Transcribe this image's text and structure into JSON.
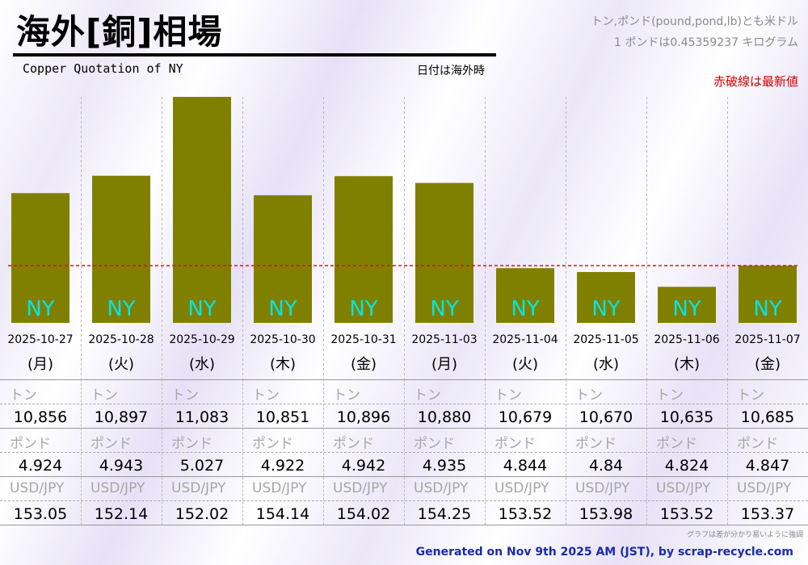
{
  "header": {
    "title": "海外[銅]相場",
    "subtitle": "Copper Quotation of NY",
    "date_note": "日付は海外時",
    "unit_note_1": "トン,ポンド(pound,pond,lb)とも米ドル",
    "unit_note_2": "1 ポンドは0.45359237 キログラム",
    "red_line_note": "赤破線は最新値"
  },
  "colors": {
    "bar": "#808000",
    "bar_label": "#00e5e5",
    "latest_line": "#e01010",
    "footer_text": "#1a2ba8"
  },
  "chart_data": {
    "type": "bar",
    "categories": [
      "2025-10-27",
      "2025-10-28",
      "2025-10-29",
      "2025-10-30",
      "2025-10-31",
      "2025-11-03",
      "2025-11-04",
      "2025-11-05",
      "2025-11-06",
      "2025-11-07"
    ],
    "weekdays": [
      "(月)",
      "(火)",
      "(水)",
      "(木)",
      "(金)",
      "(月)",
      "(火)",
      "(水)",
      "(木)",
      "(金)"
    ],
    "bar_label": "NY",
    "values": [
      10856,
      10897,
      11083,
      10851,
      10896,
      10880,
      10679,
      10670,
      10635,
      10685
    ],
    "ylim": [
      10550,
      11083
    ],
    "latest_value": 10685,
    "grid": "vertical",
    "legend": "none"
  },
  "table": {
    "ton_label": "トン",
    "pound_label": "ポンド",
    "fx_label": "USD/JPY",
    "ton": [
      "10,856",
      "10,897",
      "11,083",
      "10,851",
      "10,896",
      "10,880",
      "10,679",
      "10,670",
      "10,635",
      "10,685"
    ],
    "pound": [
      "4.924",
      "4.943",
      "5.027",
      "4.922",
      "4.942",
      "4.935",
      "4.844",
      "4.84",
      "4.824",
      "4.847"
    ],
    "fx": [
      "153.05",
      "152.14",
      "152.02",
      "154.14",
      "154.02",
      "154.25",
      "153.52",
      "153.98",
      "153.52",
      "153.37"
    ]
  },
  "footer": {
    "note": "グラフは差が分かり易いように強調",
    "generated": "Generated on Nov 9th 2025 AM (JST), by scrap-recycle.com"
  }
}
